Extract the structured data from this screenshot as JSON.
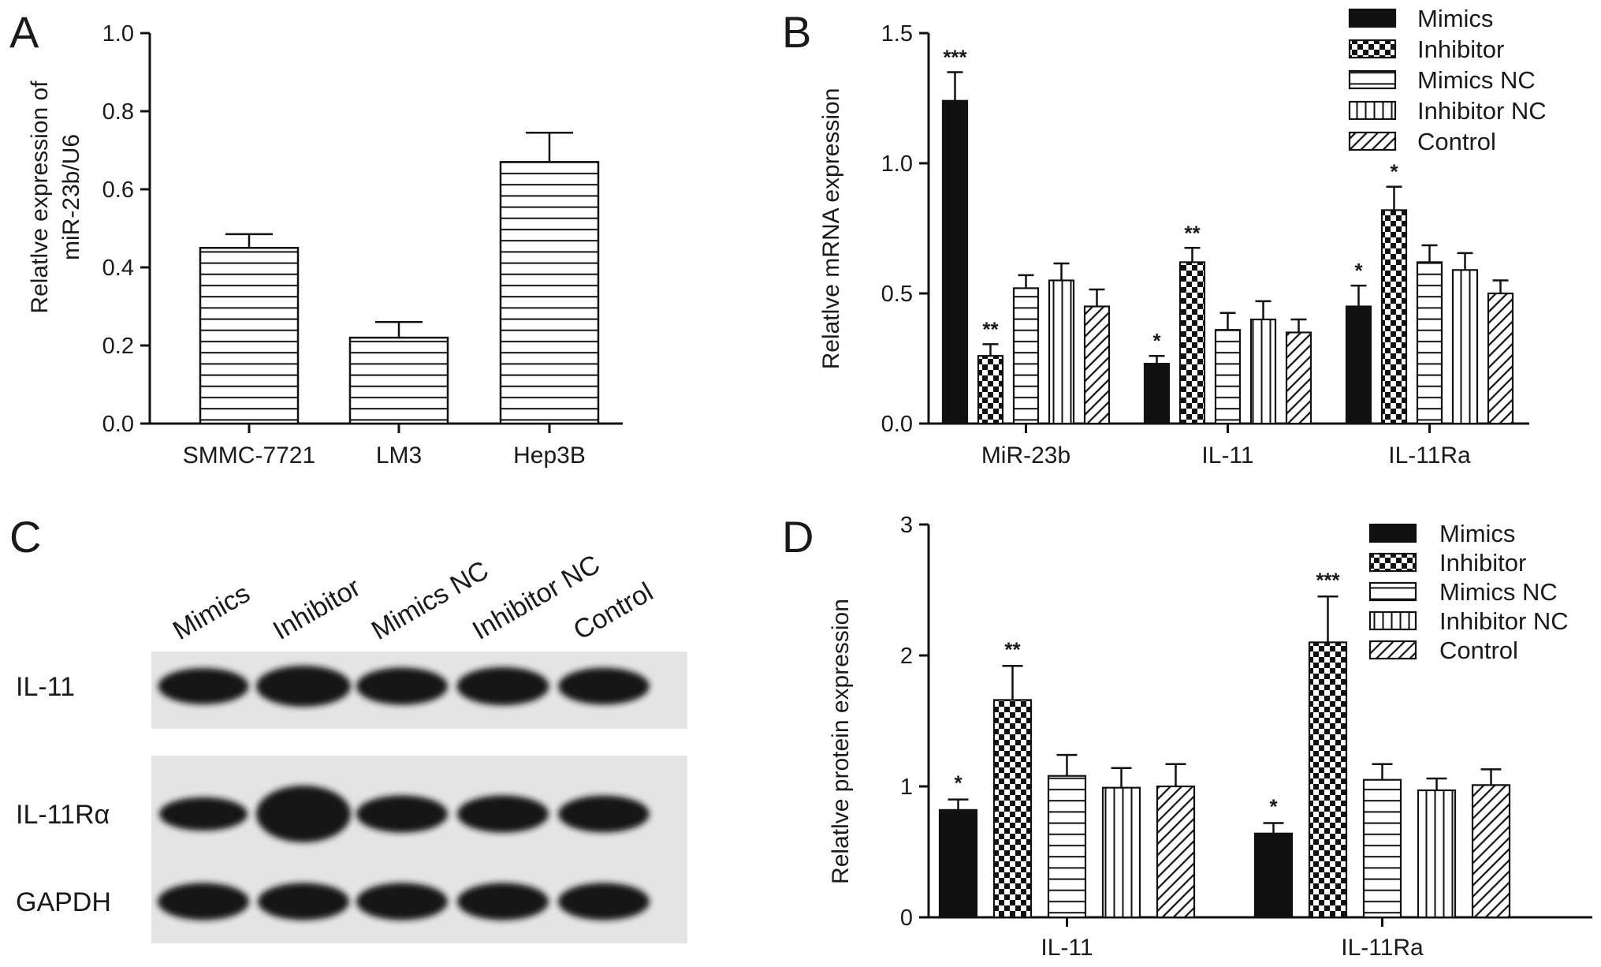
{
  "panels": {
    "a": "A",
    "b": "B",
    "c": "C",
    "d": "D"
  },
  "legend": [
    "Mimics",
    "Inhibitor",
    "Mimics NC",
    "Inhibitor NC",
    "Control"
  ],
  "colors": {
    "ink": "#111111",
    "background": "#ffffff",
    "blot_bg": "#e4e4e4",
    "band": "#161616"
  },
  "chart_data": [
    {
      "panel": "A",
      "type": "bar",
      "categories": [
        "SMMC-7721",
        "LM3",
        "Hep3B"
      ],
      "values": [
        0.45,
        0.22,
        0.67
      ],
      "errors": [
        0.035,
        0.04,
        0.075
      ],
      "ylabel_lines": [
        "Relatlve  expression of",
        "miR-23b/U6"
      ],
      "ylim": [
        0,
        1.0
      ],
      "yticks": [
        "0.0",
        "0.2",
        "0.4",
        "0.6",
        "0.8",
        "1.0"
      ],
      "pattern": "horizontal-lines",
      "grid": false
    },
    {
      "panel": "B",
      "type": "bar",
      "categories": [
        "MiR-23b",
        "IL-11",
        "IL-11Ra"
      ],
      "series": [
        {
          "name": "Mimics",
          "values": [
            1.24,
            0.23,
            0.45
          ],
          "errors": [
            0.11,
            0.03,
            0.08
          ],
          "sig": [
            "***",
            "*",
            "*"
          ]
        },
        {
          "name": "Inhibitor",
          "values": [
            0.26,
            0.62,
            0.82
          ],
          "errors": [
            0.045,
            0.055,
            0.09
          ],
          "sig": [
            "**",
            "**",
            "*"
          ]
        },
        {
          "name": "Mimics NC",
          "values": [
            0.52,
            0.36,
            0.62
          ],
          "errors": [
            0.05,
            0.065,
            0.065
          ],
          "sig": [
            "",
            "",
            ""
          ]
        },
        {
          "name": "Inhibitor NC",
          "values": [
            0.55,
            0.4,
            0.59
          ],
          "errors": [
            0.065,
            0.07,
            0.065
          ],
          "sig": [
            "",
            "",
            ""
          ]
        },
        {
          "name": "Control",
          "values": [
            0.45,
            0.35,
            0.5
          ],
          "errors": [
            0.065,
            0.05,
            0.05
          ],
          "sig": [
            "",
            "",
            ""
          ]
        }
      ],
      "ylabel": "Relatlve mRNA expression",
      "ylim": [
        0,
        1.5
      ],
      "yticks": [
        "0.0",
        "0.5",
        "1.0",
        "1.5"
      ],
      "legend_position": "top-right",
      "grid": false
    },
    {
      "panel": "D",
      "type": "bar",
      "categories": [
        "IL-11",
        "IL-11Ra"
      ],
      "series": [
        {
          "name": "Mimics",
          "values": [
            0.82,
            0.64
          ],
          "errors": [
            0.08,
            0.08
          ],
          "sig": [
            "*",
            "*"
          ]
        },
        {
          "name": "Inhibitor",
          "values": [
            1.66,
            2.1
          ],
          "errors": [
            0.26,
            0.35
          ],
          "sig": [
            "**",
            "***"
          ]
        },
        {
          "name": "Mimics NC",
          "values": [
            1.08,
            1.05
          ],
          "errors": [
            0.16,
            0.12
          ],
          "sig": [
            "",
            ""
          ]
        },
        {
          "name": "Inhibitor NC",
          "values": [
            0.99,
            0.97
          ],
          "errors": [
            0.15,
            0.09
          ],
          "sig": [
            "",
            ""
          ]
        },
        {
          "name": "Control",
          "values": [
            1.0,
            1.01
          ],
          "errors": [
            0.17,
            0.12
          ],
          "sig": [
            "",
            ""
          ]
        }
      ],
      "ylabel": "Relatlve protein expression",
      "ylim": [
        0,
        3
      ],
      "yticks": [
        "0",
        "1",
        "2",
        "3"
      ],
      "legend_position": "top-right",
      "grid": false
    }
  ],
  "western_blot": {
    "lanes": [
      "Mimics",
      "Inhibitor",
      "Mimics NC",
      "Inhibitor NC",
      "Control"
    ],
    "bands": [
      {
        "label": "IL-11",
        "intensity": [
          0.75,
          1.0,
          0.8,
          0.85,
          0.78
        ]
      },
      {
        "label": "IL-11Rα",
        "intensity": [
          0.6,
          1.0,
          0.8,
          0.8,
          0.78
        ]
      },
      {
        "label": "GAPDH",
        "intensity": [
          0.8,
          0.8,
          0.8,
          0.8,
          0.8
        ]
      }
    ]
  }
}
